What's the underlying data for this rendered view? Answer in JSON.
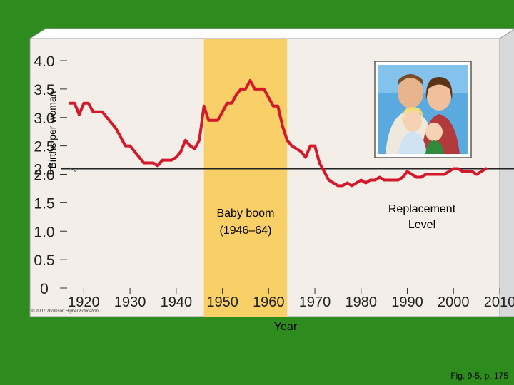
{
  "chart_data": {
    "type": "line",
    "title": "",
    "ylabel": "Births per woman",
    "xlabel": "Year",
    "xlim": [
      1915,
      2010
    ],
    "ylim": [
      0,
      4.0
    ],
    "x_ticks": [
      "1920",
      "1930",
      "1940",
      "1950",
      "1960",
      "1970",
      "1980",
      "1990",
      "2000",
      "2010"
    ],
    "y_ticks": [
      "0",
      "0.5",
      "1.0",
      "1.5",
      "2.0",
      "2.5",
      "3.0",
      "3.5",
      "4.0"
    ],
    "y_ticks_values": [
      0,
      0.5,
      1.0,
      1.5,
      2.0,
      2.5,
      3.0,
      3.5,
      4.0
    ],
    "replacement_level": {
      "label": "2.1",
      "value": 2.1,
      "note": "Replacement\nLevel"
    },
    "baby_boom": {
      "start": 1946,
      "end": 1964,
      "label": "Baby boom\n(1946–64)"
    },
    "series": [
      {
        "x": [
          1917,
          1918,
          1919,
          1920,
          1921,
          1922,
          1923,
          1924,
          1925,
          1926,
          1927,
          1928,
          1929,
          1930,
          1931,
          1932,
          1933,
          1934,
          1935,
          1936,
          1937,
          1938,
          1939,
          1940,
          1941,
          1942,
          1943,
          1944,
          1945,
          1946,
          1947,
          1948,
          1949,
          1950,
          1951,
          1952,
          1953,
          1954,
          1955,
          1956,
          1957,
          1958,
          1959,
          1960,
          1961,
          1962,
          1963,
          1964,
          1965,
          1966,
          1967,
          1968,
          1969,
          1970,
          1971,
          1972,
          1973,
          1974,
          1975,
          1976,
          1977,
          1978,
          1979,
          1980,
          1981,
          1982,
          1983,
          1984,
          1985,
          1986,
          1987,
          1988,
          1989,
          1990,
          1991,
          1992,
          1993,
          1994,
          1995,
          1996,
          1997,
          1998,
          1999,
          2000,
          2001,
          2002,
          2003,
          2004,
          2005,
          2006,
          2007
        ],
        "values": [
          3.25,
          3.25,
          3.05,
          3.25,
          3.25,
          3.1,
          3.1,
          3.1,
          3.0,
          2.9,
          2.8,
          2.65,
          2.5,
          2.5,
          2.4,
          2.3,
          2.2,
          2.2,
          2.2,
          2.15,
          2.25,
          2.25,
          2.25,
          2.3,
          2.4,
          2.6,
          2.5,
          2.45,
          2.6,
          3.2,
          2.95,
          2.95,
          2.95,
          3.1,
          3.25,
          3.25,
          3.4,
          3.5,
          3.5,
          3.65,
          3.5,
          3.5,
          3.5,
          3.35,
          3.2,
          3.2,
          2.85,
          2.6,
          2.5,
          2.45,
          2.4,
          2.3,
          2.5,
          2.5,
          2.2,
          2.05,
          1.9,
          1.85,
          1.8,
          1.8,
          1.85,
          1.8,
          1.85,
          1.9,
          1.85,
          1.9,
          1.9,
          1.95,
          1.9,
          1.9,
          1.9,
          1.9,
          1.95,
          2.05,
          2.0,
          1.95,
          1.95,
          2.0,
          2.0,
          2.0,
          2.0,
          2.0,
          2.05,
          2.1,
          2.1,
          2.05,
          2.05,
          2.05,
          2.0,
          2.05,
          2.1
        ]
      }
    ]
  },
  "copyright": "© 2007 Thomson Higher Education",
  "footer": "Fig. 9-5, p. 175",
  "colors": {
    "background": "#2e8b1e",
    "plot_bg": "#f3efe8",
    "box_face": "#ffffff",
    "box_side": "#d9d9d9",
    "baby_boom_band": "#f9cf67",
    "series_line": "#d3182b",
    "replacement_line": "#222222"
  },
  "photo": {
    "icon": "family-photo-icon"
  }
}
